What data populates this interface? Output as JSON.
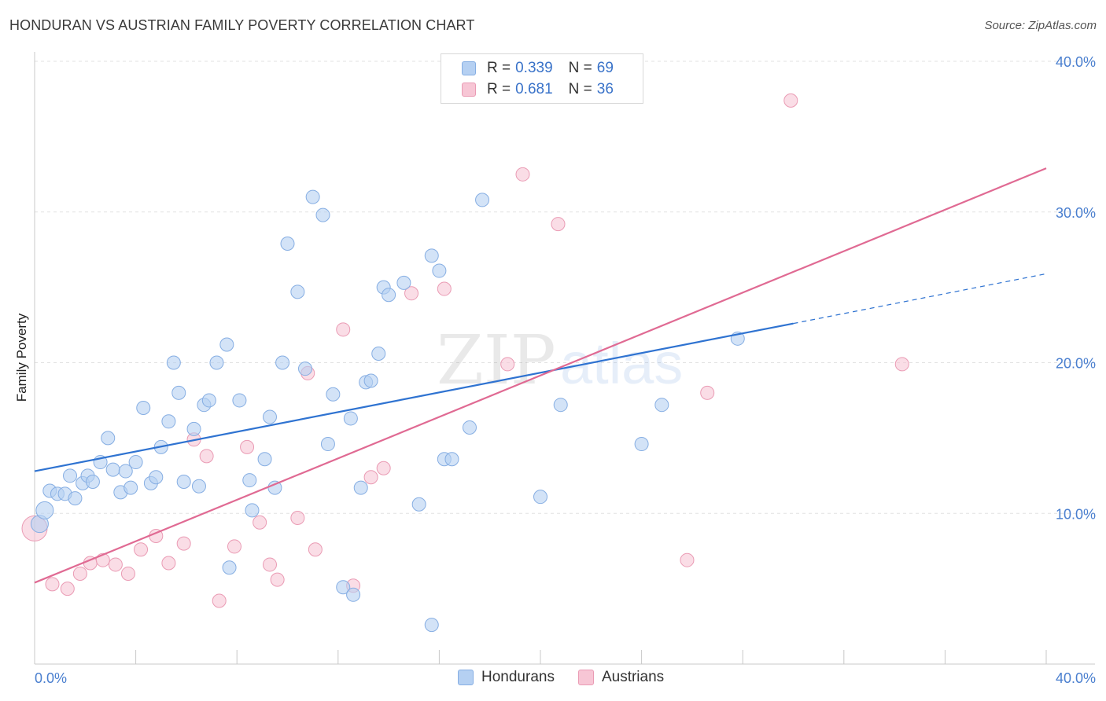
{
  "title": "HONDURAN VS AUSTRIAN FAMILY POVERTY CORRELATION CHART",
  "source": "Source: ZipAtlas.com",
  "watermark": {
    "zip": "ZIP",
    "atlas": "atlas"
  },
  "colors": {
    "blue_fill": "#b5d0f2",
    "blue_stroke": "#86aee3",
    "blue_line": "#2f73d1",
    "pink_fill": "#f7c6d5",
    "pink_stroke": "#ea9bb4",
    "pink_line": "#e06a93",
    "tick_text": "#4a7fcf"
  },
  "legend": {
    "rows": [
      {
        "r_label": "R =",
        "r_value": "0.339",
        "n_label": "N =",
        "n_value": "69",
        "series": "Hondurans"
      },
      {
        "r_label": "R =",
        "r_value": "0.681",
        "n_label": "N =",
        "n_value": "36",
        "series": "Austrians"
      }
    ]
  },
  "bottom_legend": {
    "items": [
      "Hondurans",
      "Austrians"
    ]
  },
  "chart_data": {
    "type": "scatter",
    "title": "HONDURAN VS AUSTRIAN FAMILY POVERTY CORRELATION CHART",
    "xlabel": "",
    "ylabel": "Family Poverty",
    "xlim": [
      0,
      40
    ],
    "ylim": [
      0,
      40
    ],
    "x_tick_labels": [
      "0.0%",
      "40.0%"
    ],
    "y_tick_labels": [
      "10.0%",
      "20.0%",
      "30.0%",
      "40.0%"
    ],
    "y_ticks": [
      10,
      20,
      30,
      40
    ],
    "grid": true,
    "legend_position": "top-center",
    "series": [
      {
        "name": "Hondurans",
        "color": "#b5d0f2",
        "trend": {
          "x": [
            0,
            30.0
          ],
          "y": [
            12.8,
            22.6
          ],
          "dashed_to": [
            40,
            25.9
          ]
        },
        "points": [
          [
            0.2,
            9.3
          ],
          [
            0.4,
            10.2
          ],
          [
            0.6,
            11.5
          ],
          [
            0.9,
            11.3
          ],
          [
            1.2,
            11.3
          ],
          [
            1.4,
            12.5
          ],
          [
            1.6,
            11.0
          ],
          [
            1.9,
            12.0
          ],
          [
            2.1,
            12.5
          ],
          [
            2.3,
            12.1
          ],
          [
            2.6,
            13.4
          ],
          [
            2.9,
            15.0
          ],
          [
            3.1,
            12.9
          ],
          [
            3.4,
            11.4
          ],
          [
            3.6,
            12.8
          ],
          [
            3.8,
            11.7
          ],
          [
            4.0,
            13.4
          ],
          [
            4.3,
            17.0
          ],
          [
            4.6,
            12.0
          ],
          [
            4.8,
            12.4
          ],
          [
            5.0,
            14.4
          ],
          [
            5.3,
            16.1
          ],
          [
            5.5,
            20.0
          ],
          [
            5.7,
            18.0
          ],
          [
            5.9,
            12.1
          ],
          [
            6.3,
            15.6
          ],
          [
            6.5,
            11.8
          ],
          [
            6.7,
            17.2
          ],
          [
            6.9,
            17.5
          ],
          [
            7.2,
            20.0
          ],
          [
            7.6,
            21.2
          ],
          [
            7.7,
            6.4
          ],
          [
            8.1,
            17.5
          ],
          [
            8.5,
            12.2
          ],
          [
            8.6,
            10.2
          ],
          [
            9.1,
            13.6
          ],
          [
            9.3,
            16.4
          ],
          [
            9.5,
            11.7
          ],
          [
            9.8,
            20.0
          ],
          [
            10.0,
            27.9
          ],
          [
            10.4,
            24.7
          ],
          [
            10.7,
            19.6
          ],
          [
            11.0,
            31.0
          ],
          [
            11.4,
            29.8
          ],
          [
            11.6,
            14.6
          ],
          [
            11.8,
            17.9
          ],
          [
            12.2,
            5.1
          ],
          [
            12.5,
            16.3
          ],
          [
            12.6,
            4.6
          ],
          [
            12.9,
            11.7
          ],
          [
            13.1,
            18.7
          ],
          [
            13.3,
            18.8
          ],
          [
            13.6,
            20.6
          ],
          [
            13.8,
            25.0
          ],
          [
            14.0,
            24.5
          ],
          [
            14.6,
            25.3
          ],
          [
            15.2,
            10.6
          ],
          [
            15.7,
            2.6
          ],
          [
            15.7,
            27.1
          ],
          [
            16.0,
            26.1
          ],
          [
            16.2,
            13.6
          ],
          [
            16.5,
            13.6
          ],
          [
            17.2,
            15.7
          ],
          [
            17.7,
            30.8
          ],
          [
            20.0,
            11.1
          ],
          [
            20.8,
            17.2
          ],
          [
            24.0,
            14.6
          ],
          [
            24.8,
            17.2
          ],
          [
            27.8,
            21.6
          ]
        ]
      },
      {
        "name": "Austrians",
        "color": "#f7c6d5",
        "trend": {
          "x": [
            0,
            40
          ],
          "y": [
            5.4,
            32.9
          ]
        },
        "points": [
          [
            0.0,
            9.0
          ],
          [
            0.7,
            5.3
          ],
          [
            1.3,
            5.0
          ],
          [
            1.8,
            6.0
          ],
          [
            2.2,
            6.7
          ],
          [
            2.7,
            6.9
          ],
          [
            3.2,
            6.6
          ],
          [
            3.7,
            6.0
          ],
          [
            4.2,
            7.6
          ],
          [
            4.8,
            8.5
          ],
          [
            5.3,
            6.7
          ],
          [
            5.9,
            8.0
          ],
          [
            6.3,
            14.9
          ],
          [
            6.8,
            13.8
          ],
          [
            7.3,
            4.2
          ],
          [
            7.9,
            7.8
          ],
          [
            8.4,
            14.4
          ],
          [
            8.9,
            9.4
          ],
          [
            9.3,
            6.6
          ],
          [
            9.6,
            5.6
          ],
          [
            10.4,
            9.7
          ],
          [
            10.8,
            19.3
          ],
          [
            11.1,
            7.6
          ],
          [
            12.2,
            22.2
          ],
          [
            12.6,
            5.2
          ],
          [
            13.3,
            12.4
          ],
          [
            13.8,
            13.0
          ],
          [
            14.9,
            24.6
          ],
          [
            16.2,
            24.9
          ],
          [
            18.7,
            19.9
          ],
          [
            19.3,
            32.5
          ],
          [
            20.7,
            29.2
          ],
          [
            25.8,
            6.9
          ],
          [
            26.6,
            18.0
          ],
          [
            29.9,
            37.4
          ],
          [
            34.3,
            19.9
          ]
        ]
      }
    ]
  }
}
